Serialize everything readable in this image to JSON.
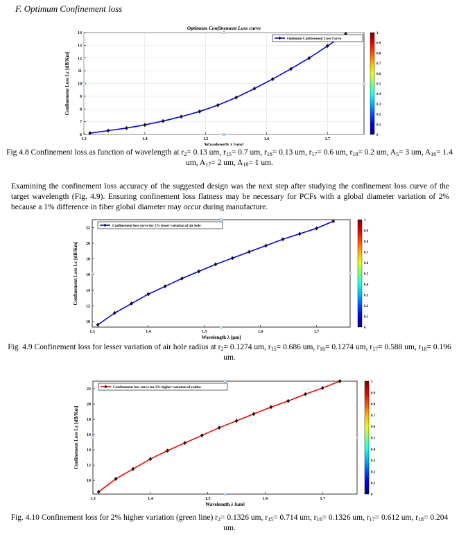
{
  "section_heading": "F.  Optimum Confinement loss",
  "paragraph": "Examining the confinement loss accuracy of the suggested design was the next step after studying the confinement loss curve of the target wavelength (Fig. 4.9). Ensuring confinement loss flatness may be necessary for PCFs with a global diameter variation of 2% because a 1% difference in fiber global diameter may occur during manufacture.",
  "captions": {
    "fig48": [
      {
        "t": "Fig 4.8 Confinement loss as function of wavelength at r"
      },
      {
        "s": "2"
      },
      {
        "t": "= 0.13 um, r"
      },
      {
        "s": "15"
      },
      {
        "t": "= 0.7 um, r"
      },
      {
        "s": "16"
      },
      {
        "t": "= 0.13 um, r"
      },
      {
        "s": "17"
      },
      {
        "t": "= 0.6 um, r"
      },
      {
        "s": "18"
      },
      {
        "t": "= 0.2 um, A"
      },
      {
        "s": "5"
      },
      {
        "t": "= 3 um, A"
      },
      {
        "s": "16"
      },
      {
        "t": "= 1.4 um, A"
      },
      {
        "s": "17"
      },
      {
        "t": "= 2 um, A"
      },
      {
        "s": "18"
      },
      {
        "t": "= 1 um."
      }
    ],
    "fig49": [
      {
        "t": "Fig. 4.9 Confinement loss for lesser variation of air hole radius at r"
      },
      {
        "s": "2"
      },
      {
        "t": "= 0.1274 um, r"
      },
      {
        "s": "15"
      },
      {
        "t": "= 0.686 um, r"
      },
      {
        "s": "16"
      },
      {
        "t": "= 0.1274 um, r"
      },
      {
        "s": "17"
      },
      {
        "t": "= 0.588 um, r"
      },
      {
        "s": "18"
      },
      {
        "t": "= 0.196 um."
      }
    ],
    "fig410": [
      {
        "t": "Fig. 4.10 Confinement loss for 2% higher variation (green line) r"
      },
      {
        "s": "2"
      },
      {
        "t": "= 0.1326 um, r"
      },
      {
        "s": "15"
      },
      {
        "t": "= 0.714 um, r"
      },
      {
        "s": "16"
      },
      {
        "t": "= 0.1326 um, r"
      },
      {
        "s": "17"
      },
      {
        "t": "= 0.612 um, r"
      },
      {
        "s": "18"
      },
      {
        "t": "= 0.204 um."
      }
    ]
  },
  "colorbar_ticks": [
    "0",
    "0.1",
    "0.2",
    "0.3",
    "0.4",
    "0.5",
    "0.6",
    "0.7",
    "0.8",
    "0.9",
    "1"
  ],
  "chart_data": [
    {
      "id": "fig48",
      "type": "line",
      "title": "Optimum Confinement Loss curve",
      "xlabel": "Wavelength λ [μm]",
      "ylabel": "Confinement Loss Lc [dB/Km]",
      "xlim": [
        1.3,
        1.76
      ],
      "ylim": [
        6,
        14
      ],
      "xticks": [
        "1.3",
        "1.4",
        "1.5",
        "1.6",
        "1.7"
      ],
      "yticks": [
        "6",
        "7",
        "8",
        "9",
        "10",
        "11",
        "12",
        "13",
        "14"
      ],
      "grid": true,
      "legend": "top-right",
      "series": [
        {
          "name": "Optimum Confinement Loss Curve",
          "color": "#0000ff",
          "x": [
            1.31,
            1.34,
            1.37,
            1.4,
            1.43,
            1.46,
            1.49,
            1.52,
            1.55,
            1.58,
            1.61,
            1.64,
            1.67,
            1.7,
            1.73
          ],
          "y": [
            6.1,
            6.3,
            6.5,
            6.75,
            7.05,
            7.4,
            7.8,
            8.3,
            8.9,
            9.6,
            10.35,
            11.15,
            12.0,
            12.95,
            13.9
          ]
        }
      ]
    },
    {
      "id": "fig49",
      "type": "line",
      "xlabel": "Wavelength λ [μm]",
      "ylabel": "Confinement Loss Lc [dB/Km]",
      "xlim": [
        1.3,
        1.76
      ],
      "ylim": [
        9.3,
        23
      ],
      "xticks": [
        "1.3",
        "1.4",
        "1.5",
        "1.6",
        "1.7"
      ],
      "yticks": [
        "10",
        "12",
        "14",
        "16",
        "18",
        "20",
        "22"
      ],
      "grid": false,
      "legend": "top-left",
      "series": [
        {
          "name": "Confinement loss curve for 2% lesser variation of air hole",
          "color": "#0000ff",
          "x": [
            1.31,
            1.34,
            1.37,
            1.4,
            1.43,
            1.46,
            1.49,
            1.52,
            1.55,
            1.58,
            1.61,
            1.64,
            1.67,
            1.7,
            1.73
          ],
          "y": [
            9.6,
            11.1,
            12.3,
            13.5,
            14.5,
            15.5,
            16.4,
            17.3,
            18.1,
            18.9,
            19.7,
            20.5,
            21.2,
            21.9,
            22.8
          ]
        }
      ]
    },
    {
      "id": "fig410",
      "type": "line",
      "xlabel": "Wavelength λ [μm]",
      "ylabel": "Confinement Loss Lc [dB/Km]",
      "xlim": [
        1.3,
        1.76
      ],
      "ylim": [
        8.2,
        23
      ],
      "xticks": [
        "1.3",
        "1.4",
        "1.5",
        "1.6",
        "1.7"
      ],
      "yticks": [
        "10",
        "12",
        "14",
        "16",
        "18",
        "20",
        "22"
      ],
      "grid": false,
      "legend": "top-left",
      "series": [
        {
          "name": "Confinement loss curve for 2% higher variation of radius",
          "color": "#ff0000",
          "x": [
            1.31,
            1.34,
            1.37,
            1.4,
            1.43,
            1.46,
            1.49,
            1.52,
            1.55,
            1.58,
            1.61,
            1.64,
            1.67,
            1.7,
            1.73
          ],
          "y": [
            8.5,
            10.2,
            11.5,
            12.8,
            13.9,
            14.9,
            15.9,
            16.9,
            17.8,
            18.7,
            19.6,
            20.4,
            21.3,
            22.1,
            23.0
          ]
        }
      ]
    }
  ]
}
